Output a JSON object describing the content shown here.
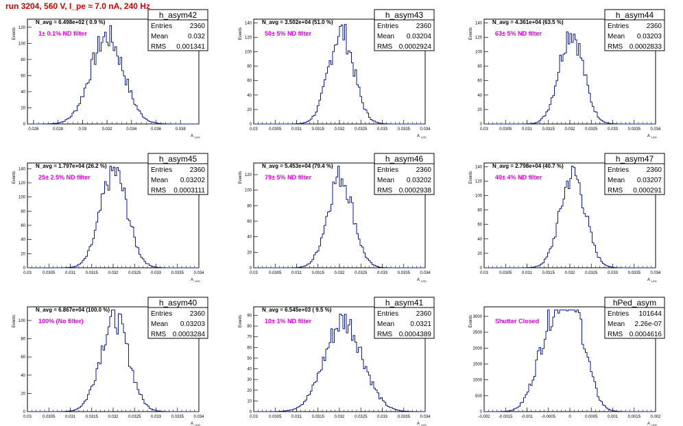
{
  "run_title": "run 3204,   560 V, I_pe ≈ 7.0 nA, 240 Hz",
  "stat_labels": {
    "entries": "Entries",
    "mean": "Mean",
    "rms": "RMS"
  },
  "ylabel": "Events",
  "xlabel_main": "A",
  "xlabel_sub": "LED",
  "chart_data": [
    {
      "type": "histogram",
      "name": "h_asym42",
      "navg": "N_avg = 6.498e+02 ( 0.9 %)",
      "filter": "1± 0.1% ND filter",
      "entries": "2360",
      "mean": "0.032",
      "rms": "0.001341",
      "xlim": [
        0.0255,
        0.0395
      ],
      "ylim": [
        0,
        130
      ],
      "xticks": [
        "0.026",
        "0.028",
        "0.03",
        "0.032",
        "0.034",
        "0.036",
        "0.038"
      ],
      "yticks": [
        "0",
        "20",
        "40",
        "60",
        "80",
        "100",
        "120"
      ],
      "mu": 0.032,
      "sigma": 0.001341,
      "peak": 112
    },
    {
      "type": "histogram",
      "name": "h_asym43",
      "navg": "N_avg = 3.502e+04 (51.0 %)",
      "filter": "50± 5% ND filter",
      "entries": "2360",
      "mean": "0.03204",
      "rms": "0.0002924",
      "xlim": [
        0.03,
        0.034
      ],
      "ylim": [
        0,
        145
      ],
      "xticks": [
        "0.03",
        "0.0305",
        "0.031",
        "0.0315",
        "0.032",
        "0.0325",
        "0.033",
        "0.0335",
        "0.034"
      ],
      "yticks": [
        "0",
        "20",
        "40",
        "60",
        "80",
        "100",
        "120",
        "140"
      ],
      "mu": 0.03204,
      "sigma": 0.0002924,
      "peak": 132
    },
    {
      "type": "histogram",
      "name": "h_asym44",
      "navg": "N_avg = 4.361e+04 (63.5 %)",
      "filter": "63± 5% ND filter",
      "entries": "2360",
      "mean": "0.03203",
      "rms": "0.0002833",
      "xlim": [
        0.03,
        0.034
      ],
      "ylim": [
        0,
        145
      ],
      "xticks": [
        "0.03",
        "0.0305",
        "0.031",
        "0.0315",
        "0.032",
        "0.0325",
        "0.033",
        "0.0335",
        "0.034"
      ],
      "yticks": [
        "0",
        "20",
        "40",
        "60",
        "80",
        "100",
        "120",
        "140"
      ],
      "mu": 0.03203,
      "sigma": 0.0002833,
      "peak": 133
    },
    {
      "type": "histogram",
      "name": "h_asym45",
      "navg": "N_avg = 1.797e+04 (26.2 %)",
      "filter": "25± 2.5% ND filter",
      "entries": "2360",
      "mean": "0.03202",
      "rms": "0.0003111",
      "xlim": [
        0.03,
        0.034
      ],
      "ylim": [
        0,
        148
      ],
      "xticks": [
        "0.03",
        "0.0305",
        "0.031",
        "0.0315",
        "0.032",
        "0.0325",
        "0.033",
        "0.0335",
        "0.034"
      ],
      "yticks": [
        "0",
        "20",
        "40",
        "60",
        "80",
        "100",
        "120",
        "140"
      ],
      "mu": 0.03202,
      "sigma": 0.0003111,
      "peak": 140
    },
    {
      "type": "histogram",
      "name": "h_asym46",
      "navg": "N_avg = 5.453e+04 (79.4 %)",
      "filter": "79± 5% ND filter",
      "entries": "2360",
      "mean": "0.03202",
      "rms": "0.0002938",
      "xlim": [
        0.03,
        0.034
      ],
      "ylim": [
        0,
        135
      ],
      "xticks": [
        "0.03",
        "0.0305",
        "0.031",
        "0.0315",
        "0.032",
        "0.0325",
        "0.033",
        "0.0335",
        "0.034"
      ],
      "yticks": [
        "0",
        "20",
        "40",
        "60",
        "80",
        "100",
        "120"
      ],
      "mu": 0.03202,
      "sigma": 0.0002938,
      "peak": 123
    },
    {
      "type": "histogram",
      "name": "h_asym47",
      "navg": "N_avg = 2.798e+04 (40.7 %)",
      "filter": "40± 4% ND filter",
      "entries": "2360",
      "mean": "0.03207",
      "rms": "0.000291",
      "xlim": [
        0.03,
        0.034
      ],
      "ylim": [
        0,
        145
      ],
      "xticks": [
        "0.03",
        "0.0305",
        "0.031",
        "0.0315",
        "0.032",
        "0.0325",
        "0.033",
        "0.0335",
        "0.034"
      ],
      "yticks": [
        "0",
        "20",
        "40",
        "60",
        "80",
        "100",
        "120",
        "140"
      ],
      "mu": 0.03207,
      "sigma": 0.000291,
      "peak": 134
    },
    {
      "type": "histogram",
      "name": "h_asym40",
      "navg": "N_avg = 6.867e+04 (100.0 %)",
      "filter": "100% (No filter)",
      "entries": "2360",
      "mean": "0.03203",
      "rms": "0.0003284",
      "xlim": [
        0.03,
        0.034
      ],
      "ylim": [
        0,
        115
      ],
      "xticks": [
        "0.03",
        "0.0305",
        "0.031",
        "0.0315",
        "0.032",
        "0.0325",
        "0.033",
        "0.0335",
        "0.034"
      ],
      "yticks": [
        "0",
        "20",
        "40",
        "60",
        "80",
        "100"
      ],
      "mu": 0.03203,
      "sigma": 0.0003284,
      "peak": 106
    },
    {
      "type": "histogram",
      "name": "h_asym41",
      "navg": "N_avg = 6.545e+03 ( 9.5 %)",
      "filter": "10± 1% ND filter",
      "entries": "2360",
      "mean": "0.0321",
      "rms": "0.0004389",
      "xlim": [
        0.03,
        0.034
      ],
      "ylim": [
        0,
        98
      ],
      "xticks": [
        "0.03",
        "0.0305",
        "0.031",
        "0.0315",
        "0.032",
        "0.0325",
        "0.033",
        "0.0335",
        "0.034"
      ],
      "yticks": [
        "0",
        "10",
        "20",
        "30",
        "40",
        "50",
        "60",
        "70",
        "80",
        "90"
      ],
      "mu": 0.0321,
      "sigma": 0.0004389,
      "peak": 88
    },
    {
      "type": "histogram",
      "name": "hPed_asym",
      "navg": "",
      "filter": "Shutter Closed",
      "entries": "101644",
      "mean": "2.26e-07",
      "rms": "0.0004616",
      "xlim": [
        -0.002,
        0.002
      ],
      "ylim": [
        0,
        3300
      ],
      "xticks": [
        "-0.002",
        "-0.0015",
        "-0.001",
        "-0.0005",
        "0",
        "0.0005",
        "0.001",
        "0.0015",
        "0.002"
      ],
      "yticks": [
        "0",
        "500",
        "1000",
        "1500",
        "2000",
        "2500",
        "3000"
      ],
      "mu": 0.0,
      "sigma": 0.0004616,
      "peak": 3150,
      "shape": "double"
    }
  ]
}
